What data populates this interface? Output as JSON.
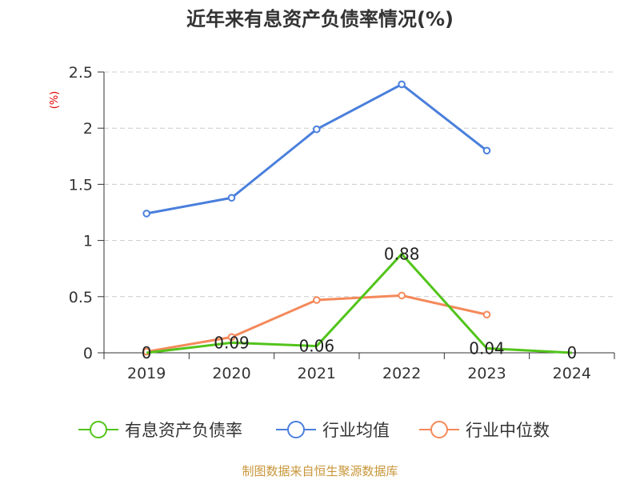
{
  "chart_data": {
    "type": "line",
    "title": "近年来有息资产负债率情况(%)",
    "ylabel": "(%)",
    "categories": [
      "2019",
      "2020",
      "2021",
      "2022",
      "2023",
      "2024"
    ],
    "ylim": [
      0,
      2.5
    ],
    "yticks": [
      0,
      0.5,
      1,
      1.5,
      2,
      2.5
    ],
    "ytick_labels": [
      "0",
      "0.5",
      "1",
      "1.5",
      "2",
      "2.5"
    ],
    "grid": true,
    "legend_position": "bottom",
    "series": [
      {
        "name": "有息资产负债率",
        "color": "#52c41a",
        "values": [
          0,
          0.09,
          0.06,
          0.88,
          0.04,
          0
        ],
        "labels": [
          "0",
          "0.09",
          "0.06",
          "0.88",
          "0.04",
          "0"
        ]
      },
      {
        "name": "行业均值",
        "color": "#4a7fdc",
        "values": [
          1.24,
          1.38,
          1.99,
          2.39,
          1.8,
          null
        ],
        "labels": []
      },
      {
        "name": "行业中位数",
        "color": "#f4895a",
        "values": [
          0.01,
          0.14,
          0.47,
          0.51,
          0.34,
          null
        ],
        "labels": []
      }
    ]
  },
  "footer": {
    "source": "制图数据来自恒生聚源数据库",
    "color": "#c8963a"
  }
}
